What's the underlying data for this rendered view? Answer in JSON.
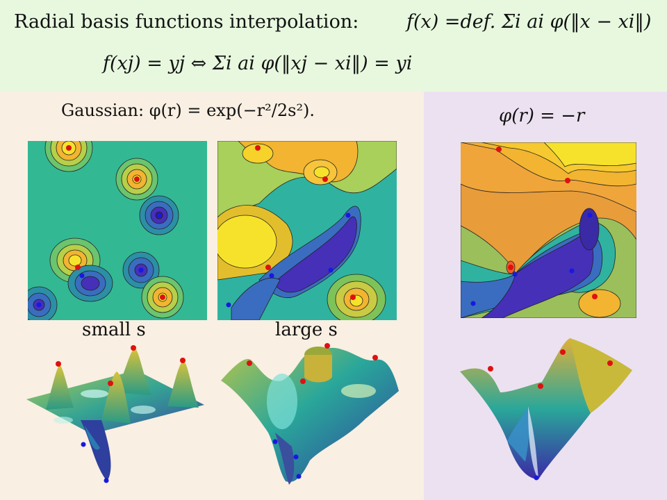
{
  "header": {
    "title_text": "Radial basis functions interpolation:",
    "definition": "f(x) =def. Σi ai φ(‖x − xi‖)",
    "condition": "f(xj) = yj   ⇔   Σi ai φ(‖xj − xi‖) = yi"
  },
  "left_panel": {
    "gaussian_label": "Gaussian: φ(r) = exp(−r²/2s²).",
    "small_label": "small s",
    "large_label": "large s"
  },
  "right_panel": {
    "phi_label": "φ(r) = −r"
  },
  "colors": {
    "top_bg": "#e7f8df",
    "left_bg": "#f9efe2",
    "right_bg": "#ece1f1",
    "positive_point": "#e01010",
    "negative_point": "#1818e0"
  }
}
